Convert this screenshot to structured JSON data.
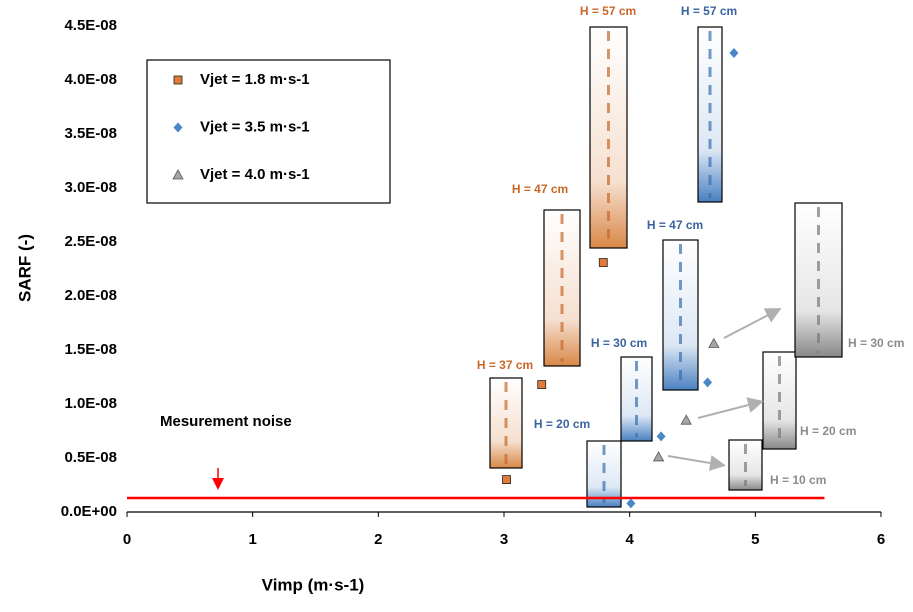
{
  "chart_data": {
    "type": "scatter",
    "x_label": "Vimp (m·s-1)",
    "y_label": "SARF  (-)",
    "xlim": [
      0,
      6
    ],
    "xticks": [
      0,
      1,
      2,
      3,
      4,
      5,
      6
    ],
    "ylim": [
      0,
      4.5e-08
    ],
    "yticks": [
      {
        "value": 0,
        "label": "0.0E+00"
      },
      {
        "value": 5e-09,
        "label": "0.5E-08"
      },
      {
        "value": 1e-08,
        "label": "1.0E-08"
      },
      {
        "value": 1.5e-08,
        "label": "1.5E-08"
      },
      {
        "value": 2e-08,
        "label": "2.0E-08"
      },
      {
        "value": 2.5e-08,
        "label": "2.5E-08"
      },
      {
        "value": 3e-08,
        "label": "3.0E-08"
      },
      {
        "value": 3.5e-08,
        "label": "3.5E-08"
      },
      {
        "value": 4e-08,
        "label": "4.0E-08"
      },
      {
        "value": 4.5e-08,
        "label": "4.5E-08"
      }
    ],
    "series": [
      {
        "name": "Vjet = 1.8 m·s-1",
        "color": "#e07b39",
        "marker": "square",
        "x": [
          3.02,
          3.3,
          3.79
        ],
        "values": [
          3e-09,
          1.18e-08,
          2.31e-08
        ]
      },
      {
        "name": "Vjet = 3.5 m·s-1",
        "color": "#4a86c8",
        "marker": "diamond",
        "x": [
          4.01,
          4.25,
          4.62,
          4.83
        ],
        "values": [
          8e-10,
          7e-09,
          1.2e-08,
          4.25e-08
        ]
      },
      {
        "name": "Vjet = 4.0 m·s-1",
        "color": "#a6a6a6",
        "marker": "triangle",
        "x": [
          4.23,
          4.45,
          4.67
        ],
        "values": [
          5.1e-09,
          8.5e-09,
          1.56e-08
        ]
      }
    ],
    "noise_line": {
      "label": "Mesurement noise",
      "value": 1.3e-09,
      "xmax": 5.55,
      "color": "#ff0000"
    },
    "annotations": [
      {
        "text": "H = 37 cm",
        "color": "#c8692a"
      },
      {
        "text": "H = 47 cm",
        "color": "#c8692a"
      },
      {
        "text": "H = 57 cm",
        "color": "#c8692a"
      },
      {
        "text": "H = 20 cm",
        "color": "#3a64a0"
      },
      {
        "text": "H = 30 cm",
        "color": "#3a64a0"
      },
      {
        "text": "H = 47 cm",
        "color": "#3a64a0"
      },
      {
        "text": "H = 57 cm",
        "color": "#3a64a0"
      },
      {
        "text": "H = 10 cm",
        "color": "#8c8c8c"
      },
      {
        "text": "H = 20 cm",
        "color": "#8c8c8c"
      },
      {
        "text": "H = 30 cm",
        "color": "#8c8c8c"
      }
    ]
  }
}
